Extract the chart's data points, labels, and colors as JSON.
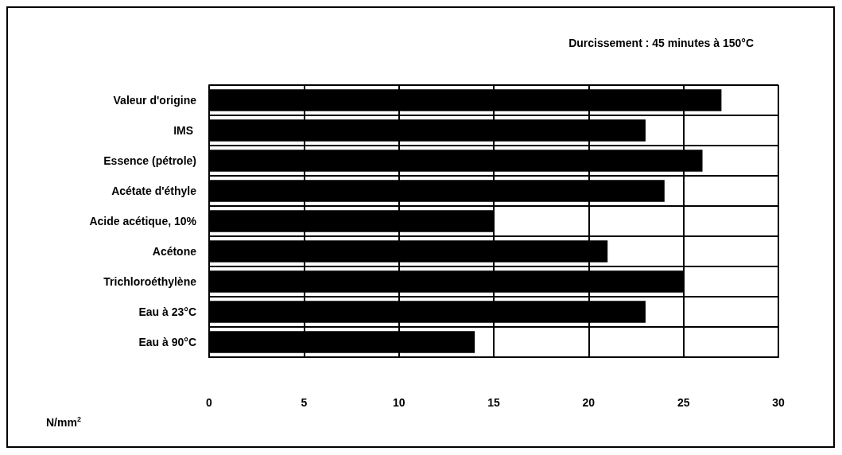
{
  "chart_data": {
    "type": "bar",
    "orientation": "horizontal",
    "title": "Durcissement : 45 minutes à 150°C",
    "xlabel": "N/mm$^{2}$",
    "categories": [
      "Valeur d'origine",
      "IMS ",
      "Essence (pétrole)",
      "Acétate d'éthyle",
      "Acide acétique, 10%",
      "Acétone",
      "Trichloroéthylène",
      "Eau à 23°C",
      "Eau à 90°C"
    ],
    "values": [
      27,
      23,
      26,
      24,
      15,
      21,
      25,
      23,
      14
    ],
    "color": "#000000",
    "xlim": [
      0,
      30
    ],
    "xticks": [
      0,
      5,
      10,
      15,
      20,
      25,
      30
    ],
    "grid": true
  }
}
